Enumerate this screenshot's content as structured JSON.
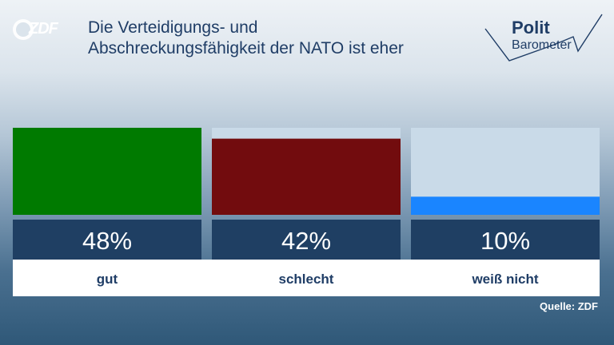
{
  "header": {
    "logo_text": "ZDF",
    "title_line1": "Die Verteidigungs- und",
    "title_line2": "Abschreckungsfähigkeit der NATO ist eher",
    "brand_word1": "Polit",
    "brand_word2": "Barometer"
  },
  "chart_data": {
    "type": "bar",
    "categories": [
      "gut",
      "schlecht",
      "weiß nicht"
    ],
    "values": [
      48,
      42,
      10
    ],
    "value_labels": [
      "48%",
      "42%",
      "10%"
    ],
    "colors": [
      "#007a00",
      "#720c0e",
      "#1a85ff"
    ],
    "ylim": [
      0,
      48
    ]
  },
  "footer": {
    "source": "Quelle: ZDF"
  }
}
